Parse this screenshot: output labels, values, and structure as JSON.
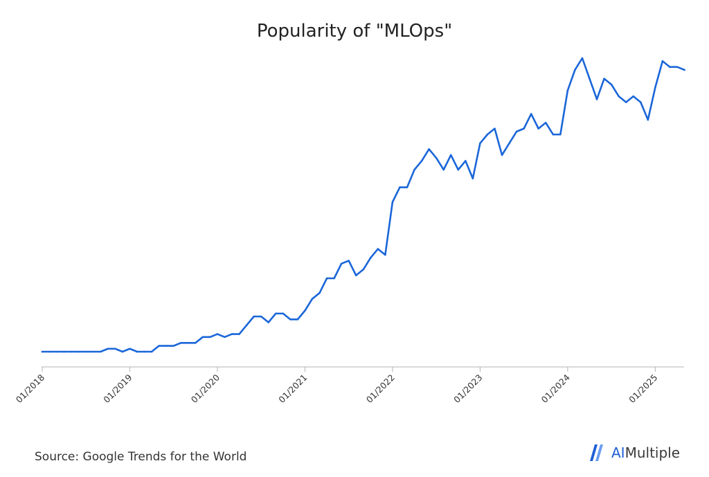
{
  "chart_data": {
    "type": "line",
    "title": "Popularity of \"MLOps\"",
    "xlabel": "",
    "ylabel": "",
    "x_start": "01/2018",
    "x_ticks": [
      "01/2018",
      "01/2019",
      "01/2020",
      "01/2021",
      "01/2022",
      "01/2023",
      "01/2024",
      "01/2025"
    ],
    "ylim": [
      0,
      100
    ],
    "y_axis_visible": false,
    "grid": false,
    "legend": "none",
    "line_color": "#1a66d9",
    "series": [
      {
        "values": [
          0,
          0,
          0,
          0,
          0,
          0,
          0,
          0,
          0,
          1,
          1,
          0,
          1,
          0,
          0,
          0,
          2,
          2,
          2,
          3,
          3,
          3,
          5,
          5,
          6,
          5,
          6,
          6,
          9,
          12,
          12,
          10,
          13,
          13,
          11,
          11,
          14,
          18,
          20,
          25,
          25,
          30,
          31,
          26,
          28,
          32,
          35,
          33,
          51,
          56,
          56,
          62,
          65,
          69,
          66,
          62,
          67,
          62,
          65,
          59,
          71,
          74,
          76,
          67,
          71,
          75,
          76,
          81,
          76,
          78,
          74,
          74,
          89,
          96,
          100,
          93,
          86,
          93,
          91,
          87,
          85,
          87,
          85,
          79,
          90,
          99,
          97,
          97,
          96
        ]
      }
    ]
  },
  "footer": {
    "source": "Source: Google Trends for the World",
    "brand_ai": "AI",
    "brand_rest": "Multiple"
  }
}
